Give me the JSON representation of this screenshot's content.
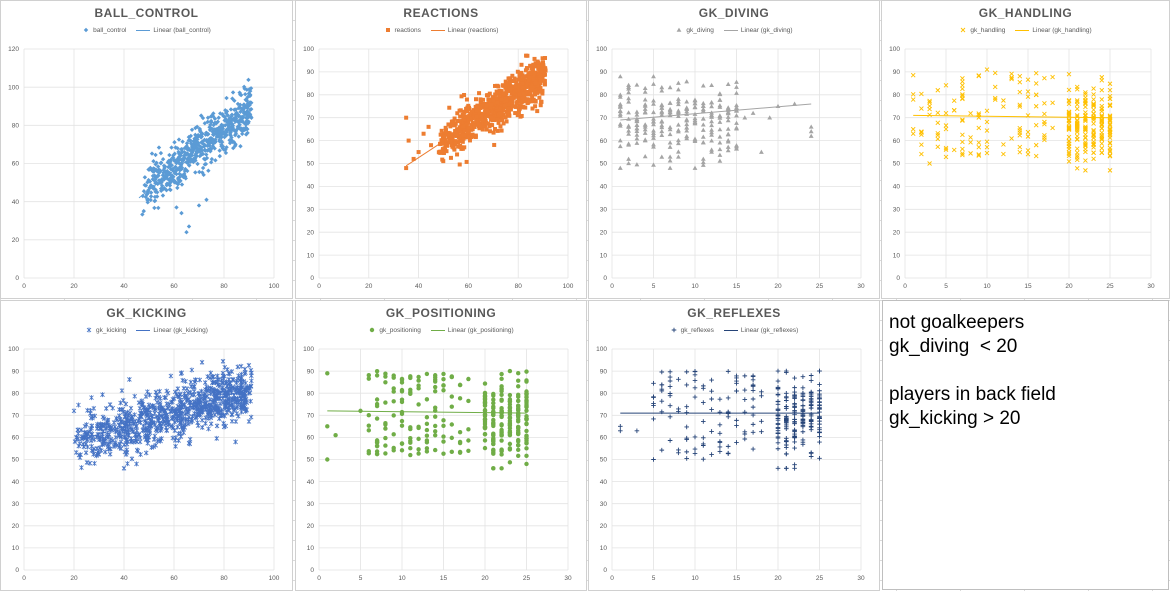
{
  "chart_data": [
    {
      "type": "scatter",
      "title": "BALL_CONTROL",
      "marker": "diamond",
      "color": "#5b9bd5",
      "trend_color": "#5b9bd5",
      "series_label": "ball_control",
      "trend_label": "Linear (ball_control)",
      "xlim": [
        0,
        100
      ],
      "ylim": [
        0,
        120
      ],
      "xticks": [
        0,
        20,
        40,
        60,
        80,
        100
      ],
      "yticks": [
        0,
        20,
        40,
        60,
        80,
        100,
        120
      ],
      "grid": true,
      "legend": "top",
      "trend": {
        "x": [
          46,
          90
        ],
        "y": [
          42,
          87
        ]
      },
      "cloud": {
        "xr": [
          47,
          91
        ],
        "slope": 1.0,
        "intercept": -2,
        "spread": 6,
        "n": 650
      },
      "outliers": [
        [
          65,
          24
        ],
        [
          66,
          27
        ],
        [
          63,
          34
        ],
        [
          61,
          37
        ],
        [
          70,
          38
        ],
        [
          57,
          46
        ],
        [
          55,
          50
        ],
        [
          73,
          41
        ]
      ]
    },
    {
      "type": "scatter",
      "title": "REACTIONS",
      "marker": "square",
      "color": "#ed7d31",
      "trend_color": "#ed7d31",
      "series_label": "reactions",
      "trend_label": "Linear (reactions)",
      "xlim": [
        0,
        100
      ],
      "ylim": [
        0,
        100
      ],
      "xticks": [
        0,
        20,
        40,
        60,
        80,
        100
      ],
      "yticks": [
        0,
        10,
        20,
        30,
        40,
        50,
        60,
        70,
        80,
        90,
        100
      ],
      "grid": true,
      "legend": "top",
      "trend": {
        "x": [
          35,
          91
        ],
        "y": [
          49,
          89
        ]
      },
      "cloud": {
        "xr": [
          48,
          91
        ],
        "slope": 0.7,
        "intercept": 25,
        "spread": 4.5,
        "n": 800
      },
      "outliers": [
        [
          35,
          48
        ],
        [
          38,
          52
        ],
        [
          40,
          55
        ],
        [
          36,
          60
        ],
        [
          42,
          63
        ],
        [
          35,
          70
        ],
        [
          45,
          58
        ],
        [
          44,
          66
        ]
      ]
    },
    {
      "type": "scatter",
      "title": "GK_DIVING",
      "marker": "triangle",
      "color": "#a5a5a5",
      "trend_color": "#a5a5a5",
      "series_label": "gk_diving",
      "trend_label": "Linear (gk_diving)",
      "xlim": [
        0,
        30
      ],
      "ylim": [
        0,
        100
      ],
      "xticks": [
        0,
        5,
        10,
        15,
        20,
        25,
        30
      ],
      "yticks": [
        0,
        10,
        20,
        30,
        40,
        50,
        60,
        70,
        80,
        90,
        100
      ],
      "grid": true,
      "legend": "top",
      "trend": {
        "x": [
          1,
          24
        ],
        "y": [
          69,
          76
        ]
      },
      "columns": {
        "xs": [
          1,
          2,
          3,
          4,
          5,
          6,
          7,
          8,
          9,
          10,
          11,
          12,
          13,
          14,
          15
        ],
        "ylo": 48,
        "yhi": 88,
        "per": 16
      },
      "outliers": [
        [
          16,
          70
        ],
        [
          17,
          72
        ],
        [
          18,
          55
        ],
        [
          19,
          70
        ],
        [
          20,
          75
        ],
        [
          22,
          76
        ],
        [
          24,
          62
        ],
        [
          24,
          64
        ],
        [
          24,
          66
        ]
      ]
    },
    {
      "type": "scatter",
      "title": "GK_HANDLING",
      "marker": "x",
      "color": "#ffc000",
      "trend_color": "#ffc000",
      "series_label": "gk_handling",
      "trend_label": "Linear (gk_handling)",
      "xlim": [
        0,
        30
      ],
      "ylim": [
        0,
        100
      ],
      "xticks": [
        0,
        5,
        10,
        15,
        20,
        25,
        30
      ],
      "yticks": [
        0,
        10,
        20,
        30,
        40,
        50,
        60,
        70,
        80,
        90,
        100
      ],
      "grid": true,
      "legend": "top",
      "trend": {
        "x": [
          1,
          25
        ],
        "y": [
          71,
          70
        ]
      },
      "sparse": {
        "xr": [
          1,
          18
        ],
        "ylo": 52,
        "yhi": 90,
        "n": 120
      },
      "columns": {
        "xs": [
          20,
          21,
          22,
          23,
          24,
          25
        ],
        "ylo": 47,
        "yhi": 89,
        "per": 34
      },
      "outliers": [
        [
          3,
          50
        ],
        [
          1,
          63
        ],
        [
          1,
          65
        ],
        [
          10,
          91
        ]
      ]
    },
    {
      "type": "scatter",
      "title": "GK_KICKING",
      "marker": "star",
      "color": "#4472c4",
      "trend_color": "#4472c4",
      "series_label": "gk_kicking",
      "trend_label": "Linear (gk_kicking)",
      "xlim": [
        0,
        100
      ],
      "ylim": [
        0,
        100
      ],
      "xticks": [
        0,
        20,
        40,
        60,
        80,
        100
      ],
      "yticks": [
        0,
        10,
        20,
        30,
        40,
        50,
        60,
        70,
        80,
        90,
        100
      ],
      "grid": true,
      "legend": "top",
      "trend": {
        "x": [
          20,
          90
        ],
        "y": [
          58,
          82
        ]
      },
      "cloud": {
        "xr": [
          20,
          91
        ],
        "slope": 0.33,
        "intercept": 51,
        "spread": 6,
        "n": 900
      },
      "outliers": [
        [
          40,
          46
        ],
        [
          45,
          48
        ],
        [
          22,
          52
        ],
        [
          20,
          72
        ],
        [
          27,
          78
        ]
      ]
    },
    {
      "type": "scatter",
      "title": "GK_POSITIONING",
      "marker": "circle",
      "color": "#70ad47",
      "trend_color": "#70ad47",
      "series_label": "gk_positioning",
      "trend_label": "Linear (gk_positioning)",
      "xlim": [
        0,
        30
      ],
      "ylim": [
        0,
        100
      ],
      "xticks": [
        0,
        5,
        10,
        15,
        20,
        25,
        30
      ],
      "yticks": [
        0,
        10,
        20,
        30,
        40,
        50,
        60,
        70,
        80,
        90,
        100
      ],
      "grid": true,
      "legend": "top",
      "trend": {
        "x": [
          1,
          25
        ],
        "y": [
          72,
          71
        ]
      },
      "sparse": {
        "xr": [
          6,
          18
        ],
        "ylo": 52,
        "yhi": 90,
        "n": 130
      },
      "columns": {
        "xs": [
          20,
          21,
          22,
          23,
          24,
          25
        ],
        "ylo": 46,
        "yhi": 90,
        "per": 34
      },
      "outliers": [
        [
          1,
          50
        ],
        [
          1,
          65
        ],
        [
          1,
          89
        ],
        [
          2,
          61
        ],
        [
          5,
          72
        ]
      ]
    },
    {
      "type": "scatter",
      "title": "GK_REFLEXES",
      "marker": "plus",
      "color": "#264478",
      "trend_color": "#264478",
      "series_label": "gk_reflexes",
      "trend_label": "Linear (gk_reflexes)",
      "xlim": [
        0,
        30
      ],
      "ylim": [
        0,
        100
      ],
      "xticks": [
        0,
        5,
        10,
        15,
        20,
        25,
        30
      ],
      "yticks": [
        0,
        10,
        20,
        30,
        40,
        50,
        60,
        70,
        80,
        90,
        100
      ],
      "grid": true,
      "legend": "top",
      "trend": {
        "x": [
          1,
          25
        ],
        "y": [
          71,
          71
        ]
      },
      "sparse": {
        "xr": [
          5,
          18
        ],
        "ylo": 50,
        "yhi": 90,
        "n": 110
      },
      "columns": {
        "xs": [
          20,
          21,
          22,
          23,
          24,
          25
        ],
        "ylo": 46,
        "yhi": 90,
        "per": 32
      },
      "outliers": [
        [
          1,
          63
        ],
        [
          1,
          65
        ],
        [
          3,
          63
        ],
        [
          5,
          50
        ]
      ]
    }
  ],
  "note": {
    "lines": [
      "not goalkeepers",
      "gk_diving  < 20",
      "",
      "players in back field",
      "gk_kicking > 20"
    ]
  }
}
